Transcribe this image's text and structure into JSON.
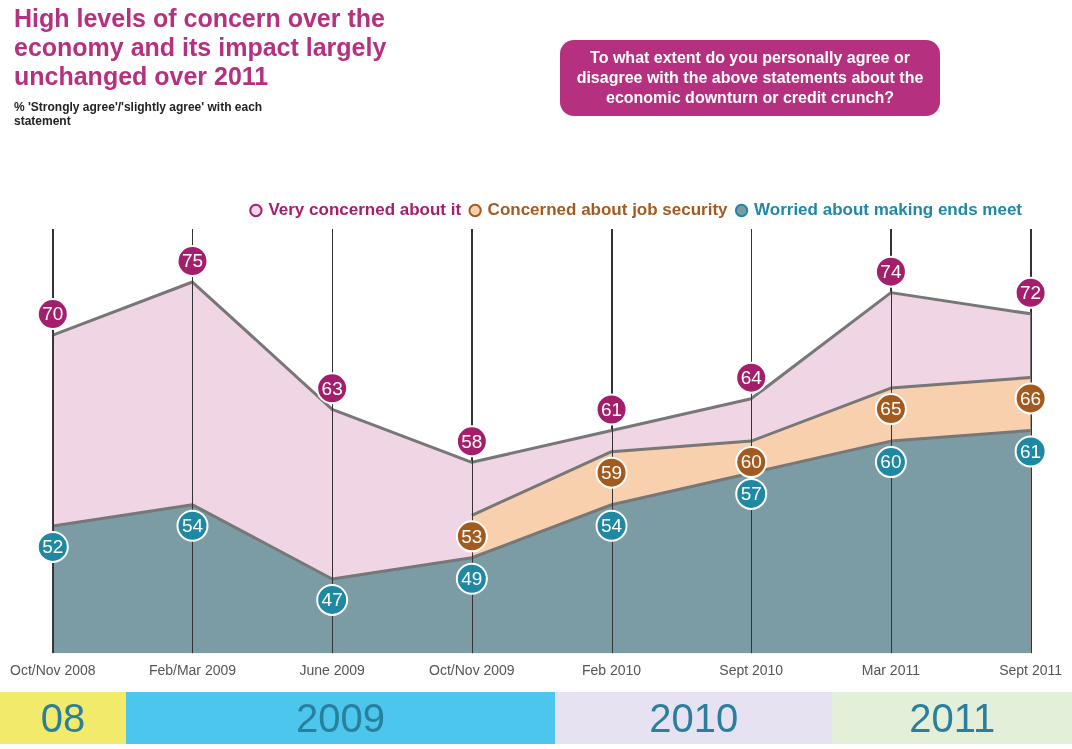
{
  "chart_data": {
    "type": "area",
    "title": "High levels of concern over the economy and its impact largely unchanged over 2011",
    "subtitle": "% 'Strongly agree'/'slightly agree' with each statement",
    "categories": [
      "Oct/Nov 2008",
      "Feb/Mar 2009",
      "June 2009",
      "Oct/Nov 2009",
      "Feb 2010",
      "Sept 2010",
      "Mar 2011",
      "Sept 2011"
    ],
    "series": [
      {
        "name": "Very concerned about it",
        "color": "#f0d6e5",
        "values": [
          70,
          75,
          63,
          58,
          61,
          64,
          74,
          72
        ]
      },
      {
        "name": "Concerned about job security",
        "color": "#f9d0ae",
        "values": [
          null,
          null,
          null,
          53,
          59,
          60,
          65,
          66
        ]
      },
      {
        "name": "Worried about making ends meet",
        "color": "#7b9ca4",
        "values": [
          52,
          54,
          47,
          49,
          54,
          57,
          60,
          61
        ]
      }
    ],
    "annotations": [
      "To what extent do you personally agree or disagree with the above statements about the economic downturn or credit crunch?",
      "08",
      "2009",
      "2010",
      "2011"
    ],
    "data_labels": true,
    "grid": "x",
    "legend": "top right",
    "line_style": "solid"
  }
}
